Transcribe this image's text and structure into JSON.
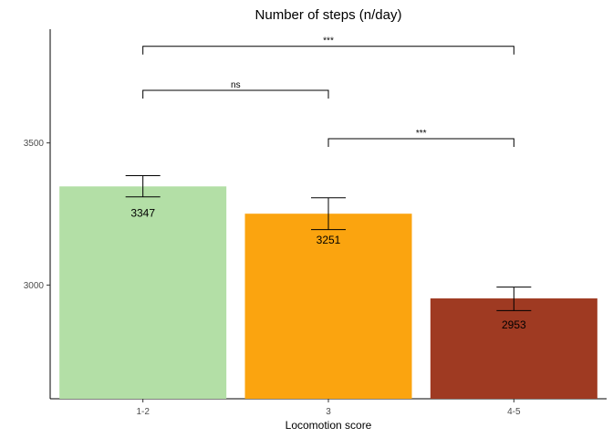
{
  "chart_data": {
    "type": "bar",
    "title": "Number of steps (n/day)",
    "xlabel": "Locomotion score",
    "ylabel": "",
    "categories": [
      "1-2",
      "3",
      "4-5"
    ],
    "values": [
      3347,
      3251,
      2953
    ],
    "data_labels": [
      "3347",
      "3251",
      "2953"
    ],
    "error_bars": [
      {
        "low": 3310,
        "high": 3385
      },
      {
        "low": 3195,
        "high": 3307
      },
      {
        "low": 2910,
        "high": 2993
      }
    ],
    "colors": [
      "#b3dfa6",
      "#fba40f",
      "#9f3a22"
    ],
    "ylim": [
      2600,
      3900
    ],
    "yticks": [
      3000,
      3500
    ],
    "ytick_labels": [
      "3000",
      "3500"
    ],
    "grid": false,
    "legend": "none",
    "significance": [
      {
        "from": "1-2",
        "to": "3",
        "y": 3685,
        "label": "ns"
      },
      {
        "from": "3",
        "to": "4-5",
        "y": 3515,
        "label": "***"
      },
      {
        "from": "1-2",
        "to": "4-5",
        "y": 3840,
        "label": "***"
      }
    ]
  }
}
